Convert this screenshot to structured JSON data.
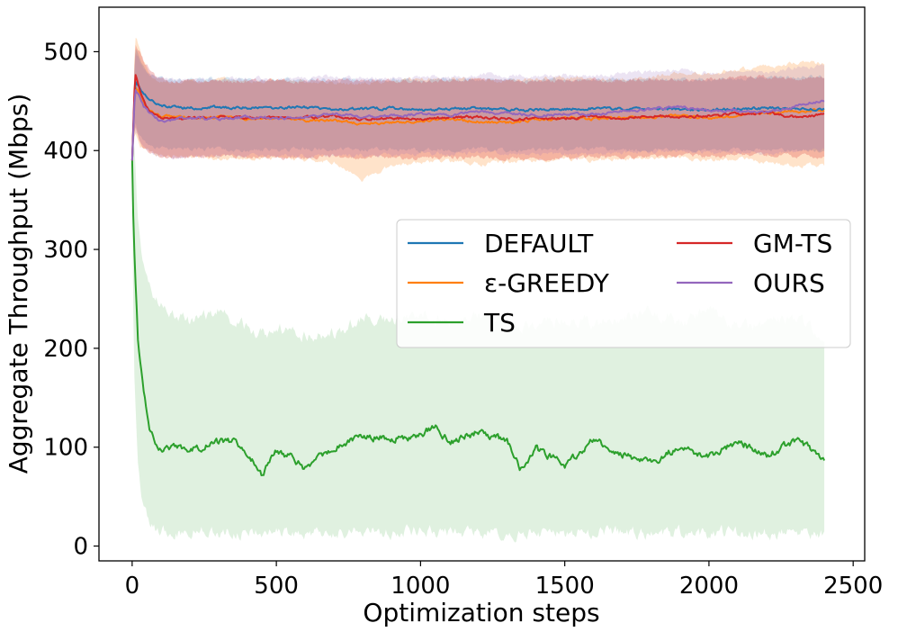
{
  "chart_data": {
    "type": "line",
    "xlabel": "Optimization steps",
    "ylabel": "Aggregate Throughput (Mbps)",
    "xlim": [
      -115,
      2540
    ],
    "ylim": [
      -15,
      545
    ],
    "xticks": [
      0,
      500,
      1000,
      1500,
      2000,
      2500
    ],
    "yticks": [
      0,
      100,
      200,
      300,
      400,
      500
    ],
    "grid": false,
    "legend_position": "center-right",
    "legend_columns": 2,
    "series": [
      {
        "name": "DEFAULT",
        "color": "#1f77b4",
        "band_opacity": 0.18,
        "x": [
          0,
          10,
          25,
          40,
          60,
          80,
          100,
          150,
          200,
          300,
          400,
          500,
          600,
          700,
          800,
          900,
          1000,
          1100,
          1200,
          1300,
          1400,
          1500,
          1600,
          1700,
          1800,
          1900,
          2000,
          2100,
          2200,
          2300,
          2400
        ],
        "mean": [
          390,
          470,
          465,
          458,
          453,
          449,
          446,
          444,
          443,
          444,
          443,
          443,
          444,
          442,
          442,
          443,
          441,
          442,
          443,
          441,
          441,
          442,
          443,
          442,
          442,
          442,
          441,
          442,
          443,
          442,
          441
        ],
        "lower": [
          390,
          430,
          415,
          410,
          405,
          402,
          402,
          402,
          402,
          401,
          400,
          401,
          402,
          401,
          401,
          402,
          400,
          401,
          402,
          400,
          400,
          401,
          402,
          401,
          400,
          401,
          400,
          401,
          401,
          400,
          400
        ],
        "upper": [
          390,
          505,
          495,
          485,
          478,
          475,
          473,
          472,
          472,
          472,
          471,
          471,
          472,
          471,
          471,
          472,
          471,
          472,
          472,
          471,
          471,
          472,
          472,
          472,
          472,
          472,
          472,
          473,
          474,
          474,
          474
        ]
      },
      {
        "name": "ε-GREEDY",
        "color": "#ff7f0e",
        "band_opacity": 0.22,
        "x": [
          0,
          10,
          25,
          40,
          60,
          80,
          100,
          150,
          200,
          300,
          400,
          500,
          600,
          700,
          800,
          900,
          1000,
          1100,
          1200,
          1300,
          1400,
          1500,
          1600,
          1700,
          1800,
          1900,
          2000,
          2100,
          2200,
          2300,
          2400
        ],
        "mean": [
          390,
          465,
          458,
          448,
          440,
          437,
          435,
          434,
          433,
          434,
          432,
          433,
          431,
          431,
          427,
          428,
          430,
          432,
          429,
          428,
          431,
          433,
          432,
          433,
          434,
          435,
          433,
          436,
          437,
          440,
          441
        ],
        "lower": [
          390,
          420,
          405,
          400,
          398,
          396,
          395,
          394,
          394,
          392,
          392,
          393,
          390,
          388,
          370,
          385,
          388,
          390,
          386,
          388,
          390,
          392,
          390,
          391,
          392,
          393,
          390,
          392,
          388,
          385,
          385
        ],
        "upper": [
          390,
          518,
          505,
          490,
          478,
          472,
          470,
          470,
          470,
          472,
          470,
          472,
          470,
          468,
          468,
          470,
          472,
          472,
          472,
          470,
          472,
          474,
          472,
          472,
          475,
          478,
          478,
          482,
          485,
          488,
          488
        ]
      },
      {
        "name": "TS",
        "color": "#2ca02c",
        "band_opacity": 0.15,
        "x": [
          0,
          5,
          10,
          20,
          30,
          40,
          60,
          80,
          100,
          150,
          200,
          300,
          350,
          400,
          450,
          500,
          550,
          600,
          700,
          800,
          900,
          1000,
          1050,
          1100,
          1200,
          1300,
          1350,
          1400,
          1500,
          1600,
          1700,
          1800,
          1900,
          2000,
          2100,
          2200,
          2300,
          2400
        ],
        "mean": [
          390,
          320,
          280,
          210,
          185,
          155,
          118,
          105,
          95,
          103,
          97,
          106,
          105,
          92,
          72,
          95,
          90,
          78,
          100,
          112,
          108,
          112,
          123,
          105,
          115,
          107,
          78,
          98,
          82,
          107,
          93,
          83,
          102,
          90,
          107,
          90,
          108,
          90
        ],
        "lower": [
          390,
          200,
          150,
          90,
          60,
          40,
          25,
          18,
          15,
          14,
          15,
          14,
          14,
          14,
          14,
          14,
          13,
          14,
          14,
          15,
          14,
          15,
          15,
          14,
          14,
          14,
          13,
          14,
          13,
          14,
          14,
          13,
          14,
          13,
          14,
          13,
          13,
          12
        ],
        "upper": [
          390,
          420,
          390,
          330,
          300,
          280,
          262,
          250,
          245,
          232,
          228,
          238,
          228,
          220,
          215,
          218,
          222,
          212,
          215,
          230,
          228,
          238,
          230,
          228,
          235,
          225,
          222,
          225,
          230,
          226,
          230,
          238,
          225,
          238,
          222,
          225,
          230,
          210
        ]
      },
      {
        "name": "GM-TS",
        "color": "#d62728",
        "band_opacity": 0.25,
        "x": [
          0,
          10,
          25,
          40,
          60,
          80,
          100,
          150,
          200,
          300,
          400,
          500,
          600,
          700,
          800,
          900,
          1000,
          1100,
          1200,
          1300,
          1400,
          1500,
          1600,
          1700,
          1800,
          1900,
          2000,
          2100,
          2200,
          2300,
          2400
        ],
        "mean": [
          390,
          478,
          462,
          450,
          440,
          436,
          433,
          432,
          433,
          434,
          433,
          434,
          433,
          435,
          432,
          433,
          432,
          433,
          434,
          432,
          432,
          433,
          434,
          433,
          435,
          434,
          435,
          437,
          438,
          434,
          436
        ],
        "lower": [
          390,
          425,
          410,
          402,
          398,
          395,
          393,
          392,
          393,
          394,
          393,
          393,
          392,
          394,
          392,
          393,
          392,
          393,
          393,
          392,
          392,
          393,
          394,
          393,
          394,
          394,
          394,
          395,
          396,
          394,
          394
        ],
        "upper": [
          390,
          510,
          500,
          490,
          482,
          476,
          472,
          470,
          470,
          470,
          470,
          471,
          470,
          472,
          470,
          471,
          470,
          471,
          472,
          470,
          470,
          471,
          472,
          471,
          472,
          472,
          472,
          474,
          475,
          472,
          474
        ]
      },
      {
        "name": "OURS",
        "color": "#9467bd",
        "band_opacity": 0.18,
        "x": [
          0,
          10,
          25,
          40,
          60,
          80,
          100,
          150,
          200,
          300,
          400,
          500,
          600,
          700,
          800,
          900,
          1000,
          1100,
          1200,
          1300,
          1400,
          1500,
          1600,
          1700,
          1800,
          1900,
          2000,
          2100,
          2200,
          2300,
          2400
        ],
        "mean": [
          390,
          462,
          455,
          445,
          438,
          433,
          430,
          432,
          433,
          432,
          434,
          433,
          434,
          437,
          434,
          435,
          437,
          435,
          440,
          438,
          436,
          437,
          436,
          440,
          442,
          445,
          440,
          440,
          438,
          445,
          451
        ],
        "lower": [
          390,
          420,
          410,
          402,
          398,
          395,
          393,
          393,
          394,
          394,
          395,
          394,
          395,
          396,
          395,
          396,
          397,
          396,
          398,
          397,
          396,
          397,
          396,
          398,
          399,
          400,
          398,
          398,
          396,
          400,
          402
        ],
        "upper": [
          390,
          498,
          492,
          484,
          478,
          474,
          472,
          472,
          472,
          472,
          473,
          472,
          473,
          475,
          473,
          474,
          475,
          474,
          477,
          476,
          475,
          476,
          475,
          478,
          480,
          482,
          478,
          480,
          478,
          484,
          486
        ]
      }
    ]
  }
}
